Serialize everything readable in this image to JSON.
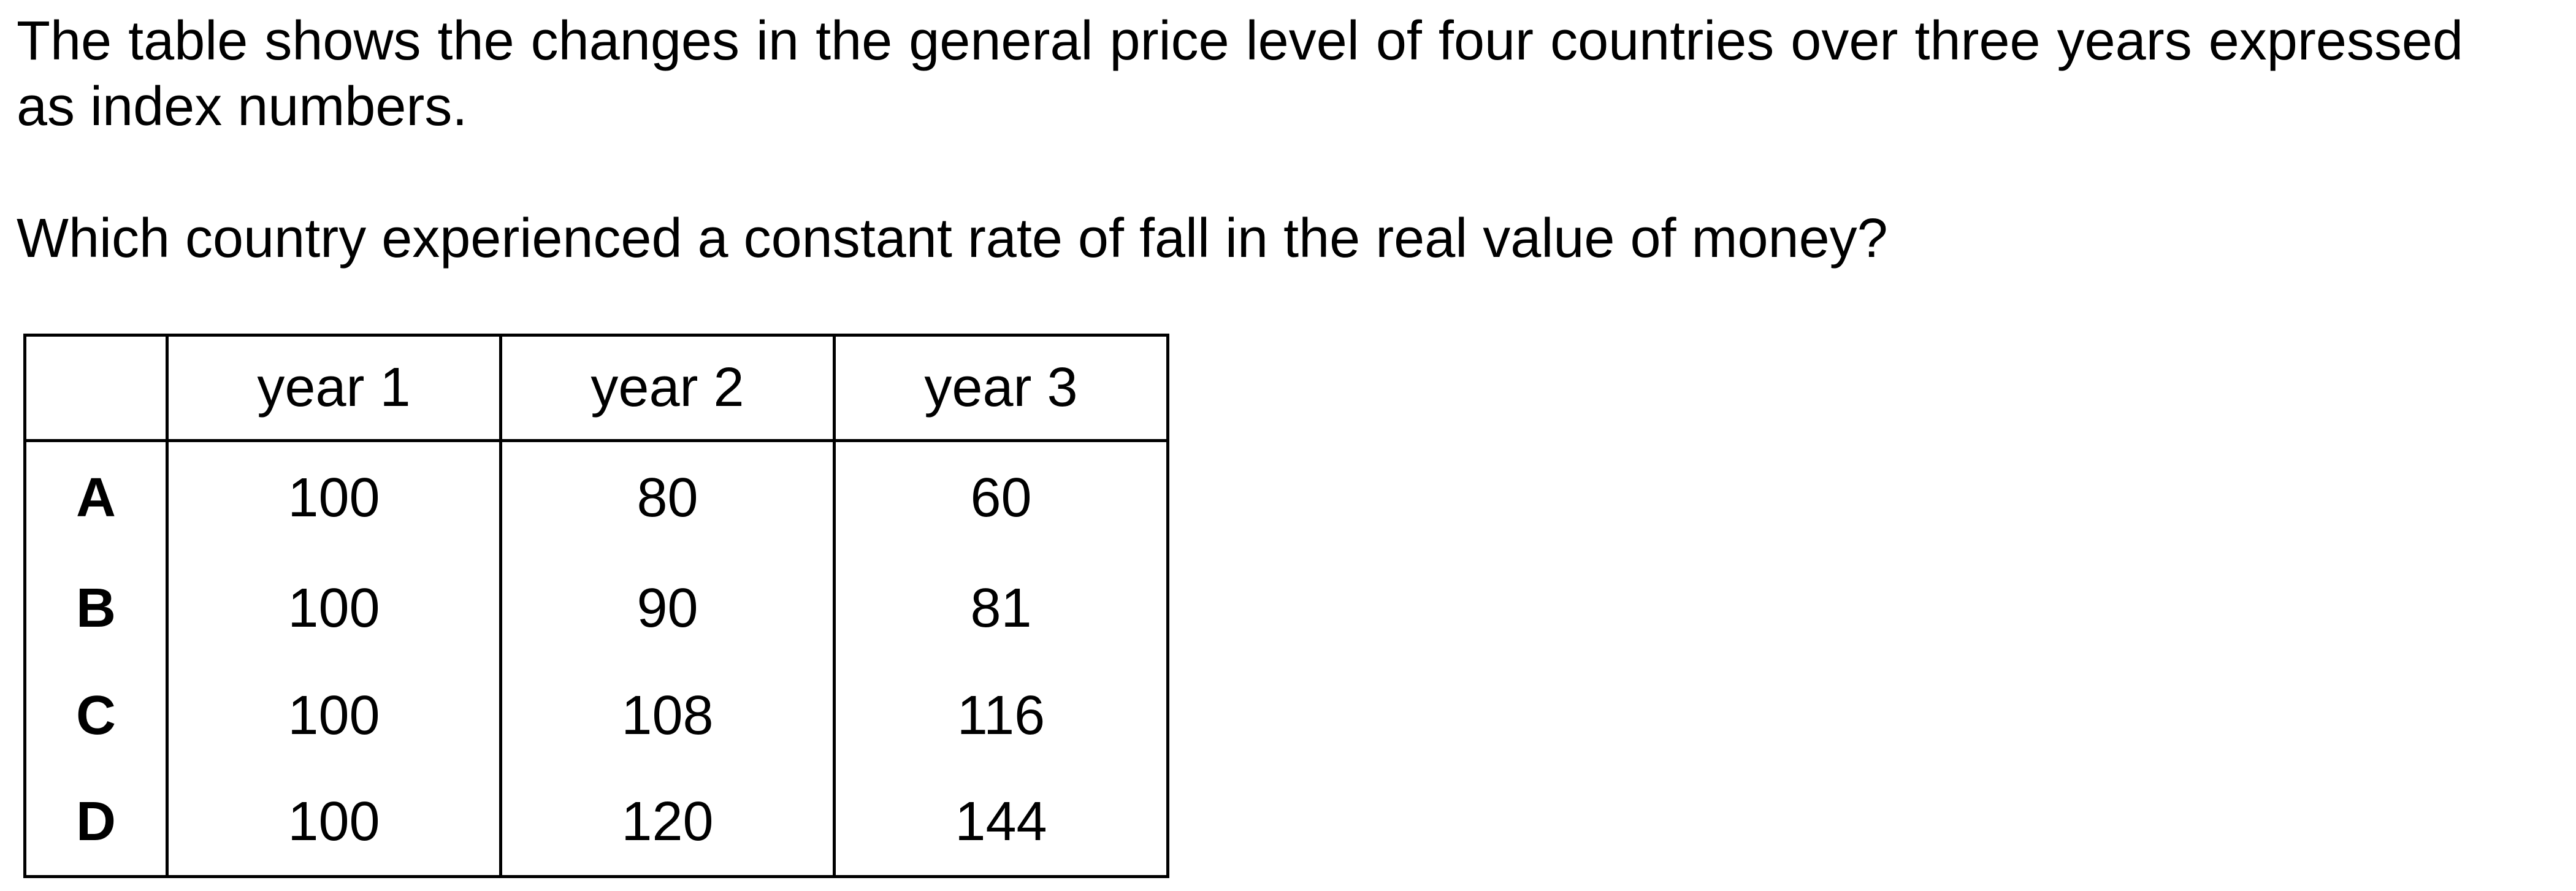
{
  "question": {
    "stem": "The table shows the changes in the general price level of four countries over three years expressed as index numbers.",
    "prompt": "Which country experienced a constant rate of fall in the real value of money?"
  },
  "table": {
    "corner": "",
    "headers": [
      "year 1",
      "year 2",
      "year 3"
    ],
    "rows": [
      {
        "label": "A",
        "values": [
          "100",
          "80",
          "60"
        ]
      },
      {
        "label": "B",
        "values": [
          "100",
          "90",
          "81"
        ]
      },
      {
        "label": "C",
        "values": [
          "100",
          "108",
          "116"
        ]
      },
      {
        "label": "D",
        "values": [
          "100",
          "120",
          "144"
        ]
      }
    ]
  }
}
